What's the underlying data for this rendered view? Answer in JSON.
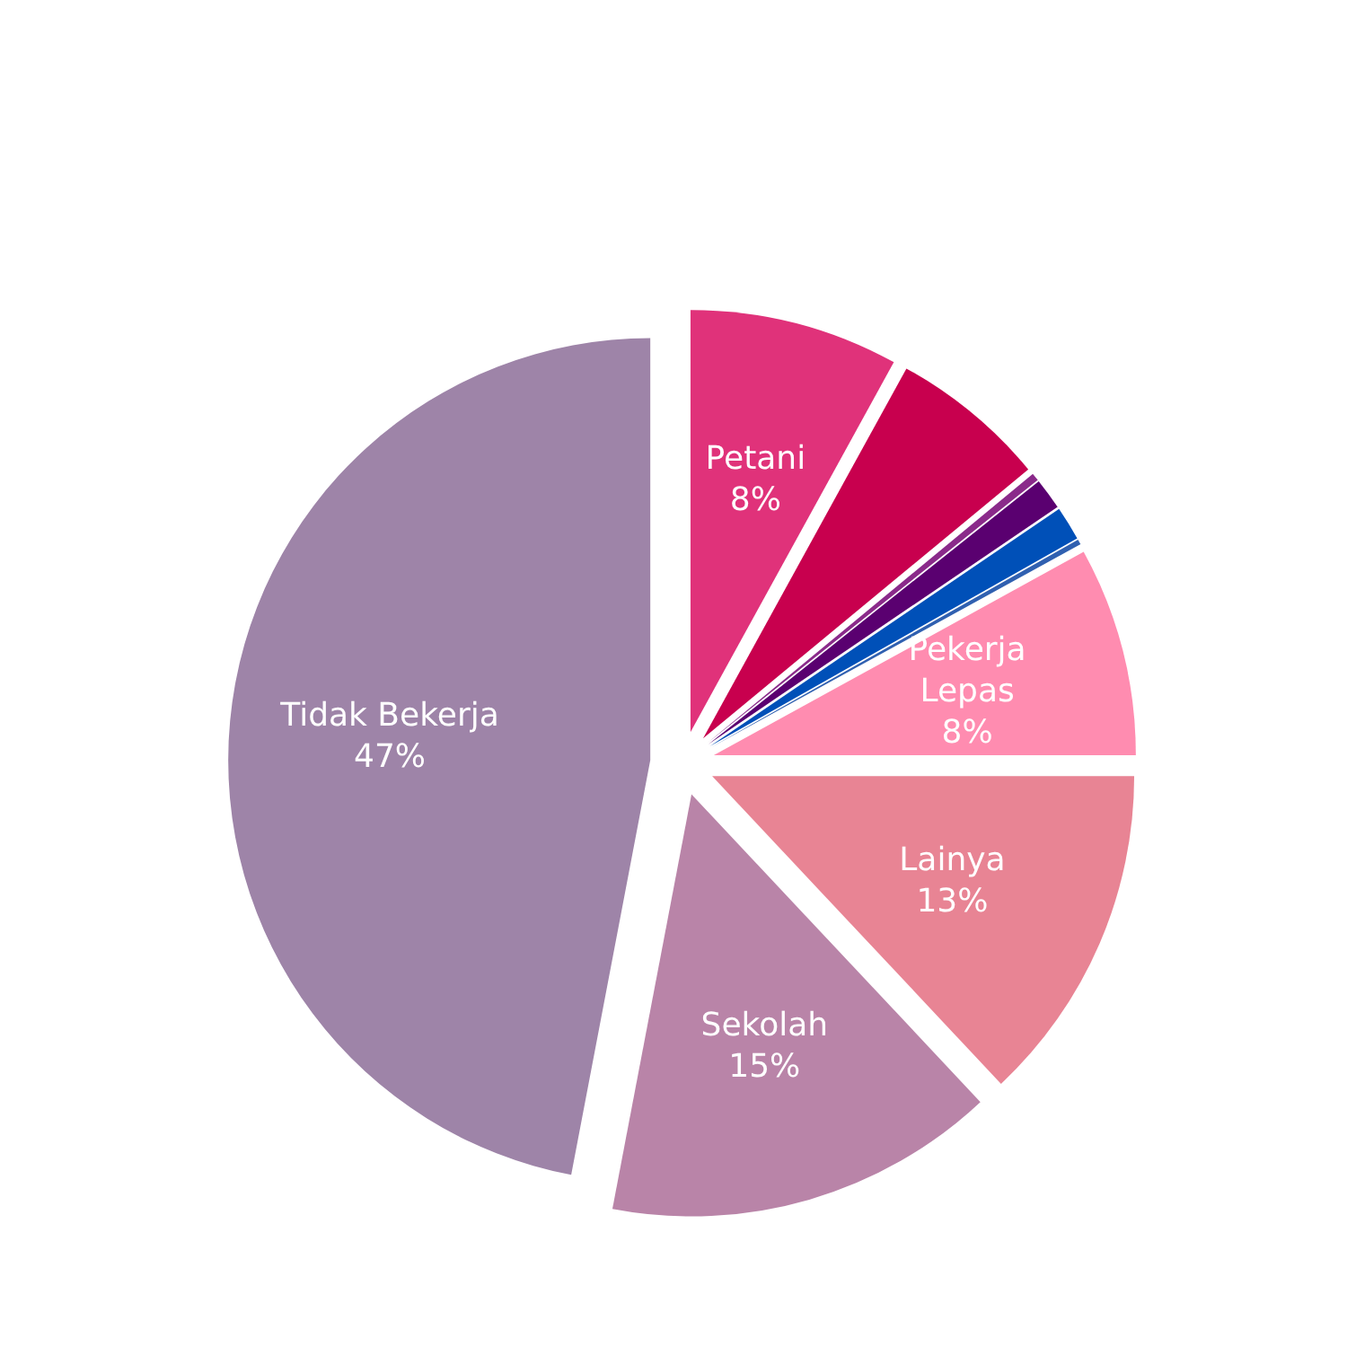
{
  "chart_data": {
    "type": "pie",
    "categories": [
      "Petani",
      null,
      null,
      null,
      null,
      null,
      "Pekerja Lepas",
      "Lainya",
      "Sekolah",
      "Tidak Bekerja"
    ],
    "values": [
      8,
      6,
      0.3,
      1.2,
      1.3,
      0.2,
      8,
      13,
      15,
      47
    ],
    "value_labels": [
      "8%",
      null,
      null,
      null,
      null,
      null,
      "8%",
      "13%",
      "15%",
      "47%"
    ],
    "colors": [
      "#e0327a",
      "#c8004e",
      "#8a2a8a",
      "#5a0070",
      "#0050b8",
      "#3060b0",
      "#ff8cb0",
      "#e88494",
      "#b984a8",
      "#9e84a8"
    ],
    "legend": false
  }
}
